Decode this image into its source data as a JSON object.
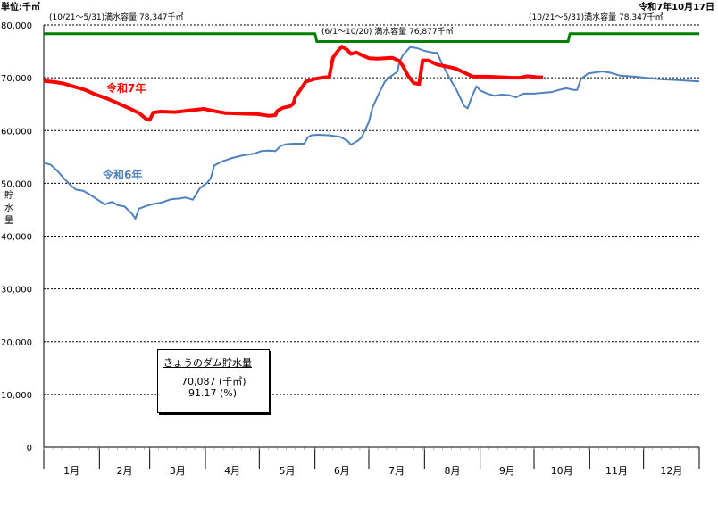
{
  "header": {
    "unit": "単位:千㎥",
    "date": "令和7年10月17日"
  },
  "capacity_labels": {
    "left": "(10/21～5/31)満水容量 78,347千㎥",
    "middle": "(6/1～10/20) 満水容量 76,877千㎥",
    "right": "(10/21～5/31)満水容量 78,347千㎥"
  },
  "info_box": {
    "title": "きょうのダム貯水量",
    "volume": "70,087 (千㎥)",
    "percent": "91.17 (%)"
  },
  "colors": {
    "r7": "#ff0000",
    "r6": "#4f81bd",
    "capacity": "#008000",
    "grid": "#000000",
    "axis": "#808080"
  },
  "chart_data": {
    "type": "line",
    "ylabel": "貯水量",
    "ylim": [
      0,
      80000
    ],
    "yticks": [
      "0",
      "10,000",
      "20,000",
      "30,000",
      "40,000",
      "50,000",
      "60,000",
      "70,000",
      "80,000"
    ],
    "months": [
      "1月",
      "2月",
      "3月",
      "4月",
      "5月",
      "6月",
      "7月",
      "8月",
      "9月",
      "10月",
      "11月",
      "12月"
    ],
    "x_unit": "day_of_year",
    "series": [
      {
        "name": "令和7年",
        "values": [
          [
            1,
            69400
          ],
          [
            7,
            69200
          ],
          [
            12,
            68900
          ],
          [
            18,
            68300
          ],
          [
            24,
            67700
          ],
          [
            30,
            66800
          ],
          [
            36,
            66100
          ],
          [
            42,
            65200
          ],
          [
            48,
            64300
          ],
          [
            54,
            63300
          ],
          [
            58,
            62200
          ],
          [
            60,
            62000
          ],
          [
            62,
            63400
          ],
          [
            66,
            63600
          ],
          [
            74,
            63500
          ],
          [
            82,
            63800
          ],
          [
            90,
            64100
          ],
          [
            96,
            63700
          ],
          [
            102,
            63300
          ],
          [
            110,
            63200
          ],
          [
            120,
            63100
          ],
          [
            126,
            62800
          ],
          [
            130,
            62900
          ],
          [
            131,
            63700
          ],
          [
            134,
            64300
          ],
          [
            138,
            64600
          ],
          [
            140,
            65100
          ],
          [
            141,
            66300
          ],
          [
            144,
            67800
          ],
          [
            147,
            69300
          ],
          [
            152,
            69800
          ],
          [
            160,
            70200
          ],
          [
            162,
            73800
          ],
          [
            165,
            75200
          ],
          [
            167,
            75900
          ],
          [
            170,
            75300
          ],
          [
            172,
            74500
          ],
          [
            175,
            74800
          ],
          [
            178,
            74300
          ],
          [
            182,
            73700
          ],
          [
            187,
            73600
          ],
          [
            195,
            73800
          ],
          [
            199,
            73200
          ],
          [
            201,
            72200
          ],
          [
            204,
            70300
          ],
          [
            207,
            69000
          ],
          [
            210,
            68800
          ],
          [
            212,
            73300
          ],
          [
            215,
            73300
          ],
          [
            220,
            72500
          ],
          [
            230,
            71800
          ],
          [
            235,
            71000
          ],
          [
            240,
            70200
          ],
          [
            248,
            70200
          ],
          [
            255,
            70100
          ],
          [
            262,
            70000
          ],
          [
            266,
            70000
          ],
          [
            270,
            70300
          ],
          [
            276,
            70100
          ],
          [
            279,
            70087
          ]
        ]
      },
      {
        "name": "令和6年",
        "values": [
          [
            1,
            53900
          ],
          [
            5,
            53500
          ],
          [
            9,
            52200
          ],
          [
            12,
            51000
          ],
          [
            16,
            49600
          ],
          [
            19,
            48800
          ],
          [
            23,
            48600
          ],
          [
            27,
            47800
          ],
          [
            31,
            46900
          ],
          [
            35,
            46000
          ],
          [
            39,
            46500
          ],
          [
            42,
            45900
          ],
          [
            46,
            45600
          ],
          [
            50,
            44300
          ],
          [
            52,
            43300
          ],
          [
            54,
            45200
          ],
          [
            58,
            45700
          ],
          [
            62,
            46100
          ],
          [
            66,
            46300
          ],
          [
            72,
            47000
          ],
          [
            76,
            47100
          ],
          [
            80,
            47300
          ],
          [
            84,
            46900
          ],
          [
            88,
            49100
          ],
          [
            92,
            50100
          ],
          [
            94,
            51000
          ],
          [
            96,
            53400
          ],
          [
            100,
            54100
          ],
          [
            106,
            54800
          ],
          [
            112,
            55300
          ],
          [
            118,
            55600
          ],
          [
            122,
            56100
          ],
          [
            126,
            56200
          ],
          [
            130,
            56100
          ],
          [
            133,
            57100
          ],
          [
            136,
            57400
          ],
          [
            140,
            57500
          ],
          [
            146,
            57500
          ],
          [
            148,
            58700
          ],
          [
            150,
            59100
          ],
          [
            154,
            59200
          ],
          [
            160,
            59100
          ],
          [
            166,
            58800
          ],
          [
            170,
            58100
          ],
          [
            172,
            57300
          ],
          [
            176,
            58100
          ],
          [
            178,
            58700
          ],
          [
            182,
            61600
          ],
          [
            184,
            64300
          ],
          [
            188,
            67300
          ],
          [
            191,
            69300
          ],
          [
            194,
            70200
          ],
          [
            198,
            71200
          ],
          [
            199,
            73000
          ],
          [
            201,
            74300
          ],
          [
            205,
            75800
          ],
          [
            209,
            75600
          ],
          [
            213,
            75100
          ],
          [
            217,
            74800
          ],
          [
            220,
            74700
          ],
          [
            223,
            72500
          ],
          [
            227,
            69900
          ],
          [
            231,
            67600
          ],
          [
            235,
            64700
          ],
          [
            237,
            64200
          ],
          [
            240,
            66900
          ],
          [
            242,
            68400
          ],
          [
            244,
            67600
          ],
          [
            248,
            67000
          ],
          [
            252,
            66600
          ],
          [
            256,
            66800
          ],
          [
            260,
            66700
          ],
          [
            264,
            66300
          ],
          [
            268,
            67000
          ],
          [
            274,
            67000
          ],
          [
            280,
            67200
          ],
          [
            284,
            67300
          ],
          [
            288,
            67700
          ],
          [
            292,
            68000
          ],
          [
            296,
            67700
          ],
          [
            298,
            67700
          ],
          [
            300,
            69700
          ],
          [
            304,
            70800
          ],
          [
            312,
            71200
          ],
          [
            316,
            71000
          ],
          [
            322,
            70400
          ],
          [
            330,
            70200
          ],
          [
            336,
            70000
          ],
          [
            345,
            69700
          ],
          [
            352,
            69600
          ],
          [
            357,
            69500
          ],
          [
            366,
            69300
          ]
        ]
      },
      {
        "name": "満水容量",
        "values": [
          [
            1,
            78347
          ],
          [
            152,
            78347
          ],
          [
            153,
            76877
          ],
          [
            293,
            76877
          ],
          [
            294,
            78347
          ],
          [
            366,
            78347
          ]
        ]
      }
    ],
    "grid": true
  }
}
